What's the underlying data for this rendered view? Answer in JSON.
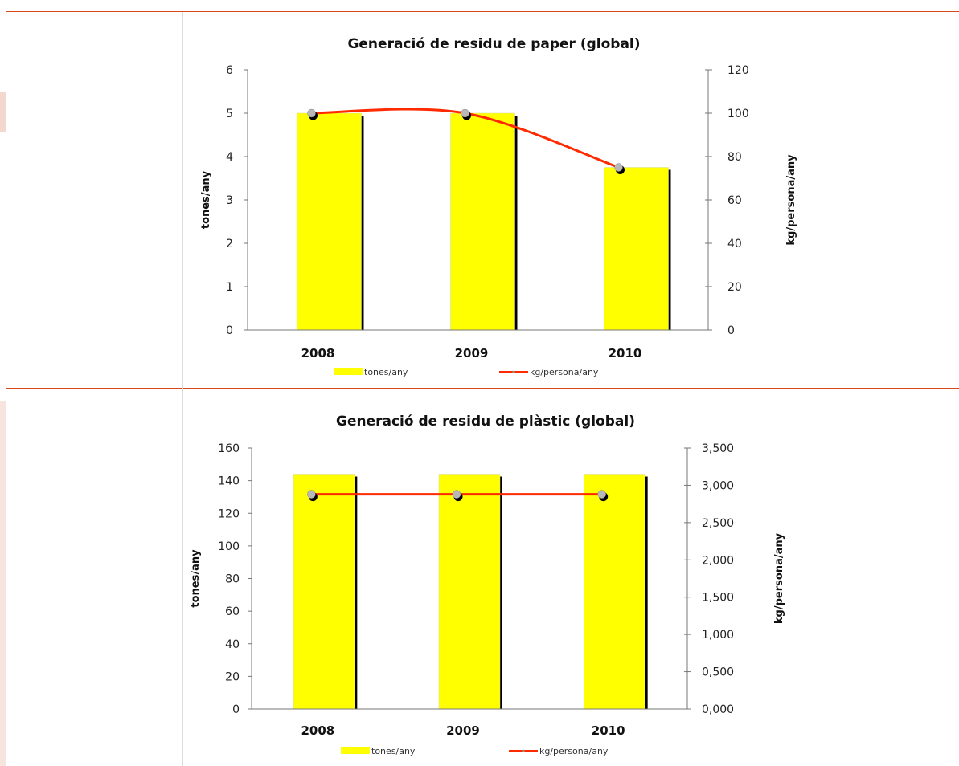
{
  "chart_data": [
    {
      "type": "bar",
      "title": "Generació de residu de paper (global)",
      "categories": [
        "2008",
        "2009",
        "2010"
      ],
      "series": [
        {
          "name": "tones/any",
          "kind": "bar",
          "axis": "left",
          "values": [
            5.0,
            5.0,
            3.75
          ],
          "color": "#ffff00"
        },
        {
          "name": "kg/persona/any",
          "kind": "line",
          "axis": "right",
          "values": [
            100,
            100,
            75
          ],
          "color": "#ff2a00",
          "smooth": true
        }
      ],
      "ylabel": "tones/any",
      "y2label": "kg/persona/any",
      "ylim": [
        0,
        6
      ],
      "y2lim": [
        0,
        120
      ],
      "yticks": [
        "0",
        "1",
        "2",
        "3",
        "4",
        "5",
        "6"
      ],
      "y2ticks": [
        "0",
        "20",
        "40",
        "60",
        "80",
        "100",
        "120"
      ],
      "grid": false,
      "legend_position": "bottom"
    },
    {
      "type": "bar",
      "title": "Generació de residu de plàstic (global)",
      "categories": [
        "2008",
        "2009",
        "2010"
      ],
      "series": [
        {
          "name": "tones/any",
          "kind": "bar",
          "axis": "left",
          "values": [
            144,
            144,
            144
          ],
          "color": "#ffff00"
        },
        {
          "name": "kg/persona/any",
          "kind": "line",
          "axis": "right",
          "values": [
            2.88,
            2.88,
            2.88
          ],
          "color": "#ff2a00",
          "smooth": false
        }
      ],
      "ylabel": "tones/any",
      "y2label": "kg/persona/any",
      "ylim": [
        0,
        160
      ],
      "y2lim": [
        0,
        3.5
      ],
      "yticks": [
        "0",
        "20",
        "40",
        "60",
        "80",
        "100",
        "120",
        "140",
        "160"
      ],
      "y2ticks": [
        "0,000",
        "0,500",
        "1,000",
        "1,500",
        "2,000",
        "2,500",
        "3,000",
        "3,500"
      ],
      "grid": false,
      "legend_position": "bottom"
    }
  ]
}
